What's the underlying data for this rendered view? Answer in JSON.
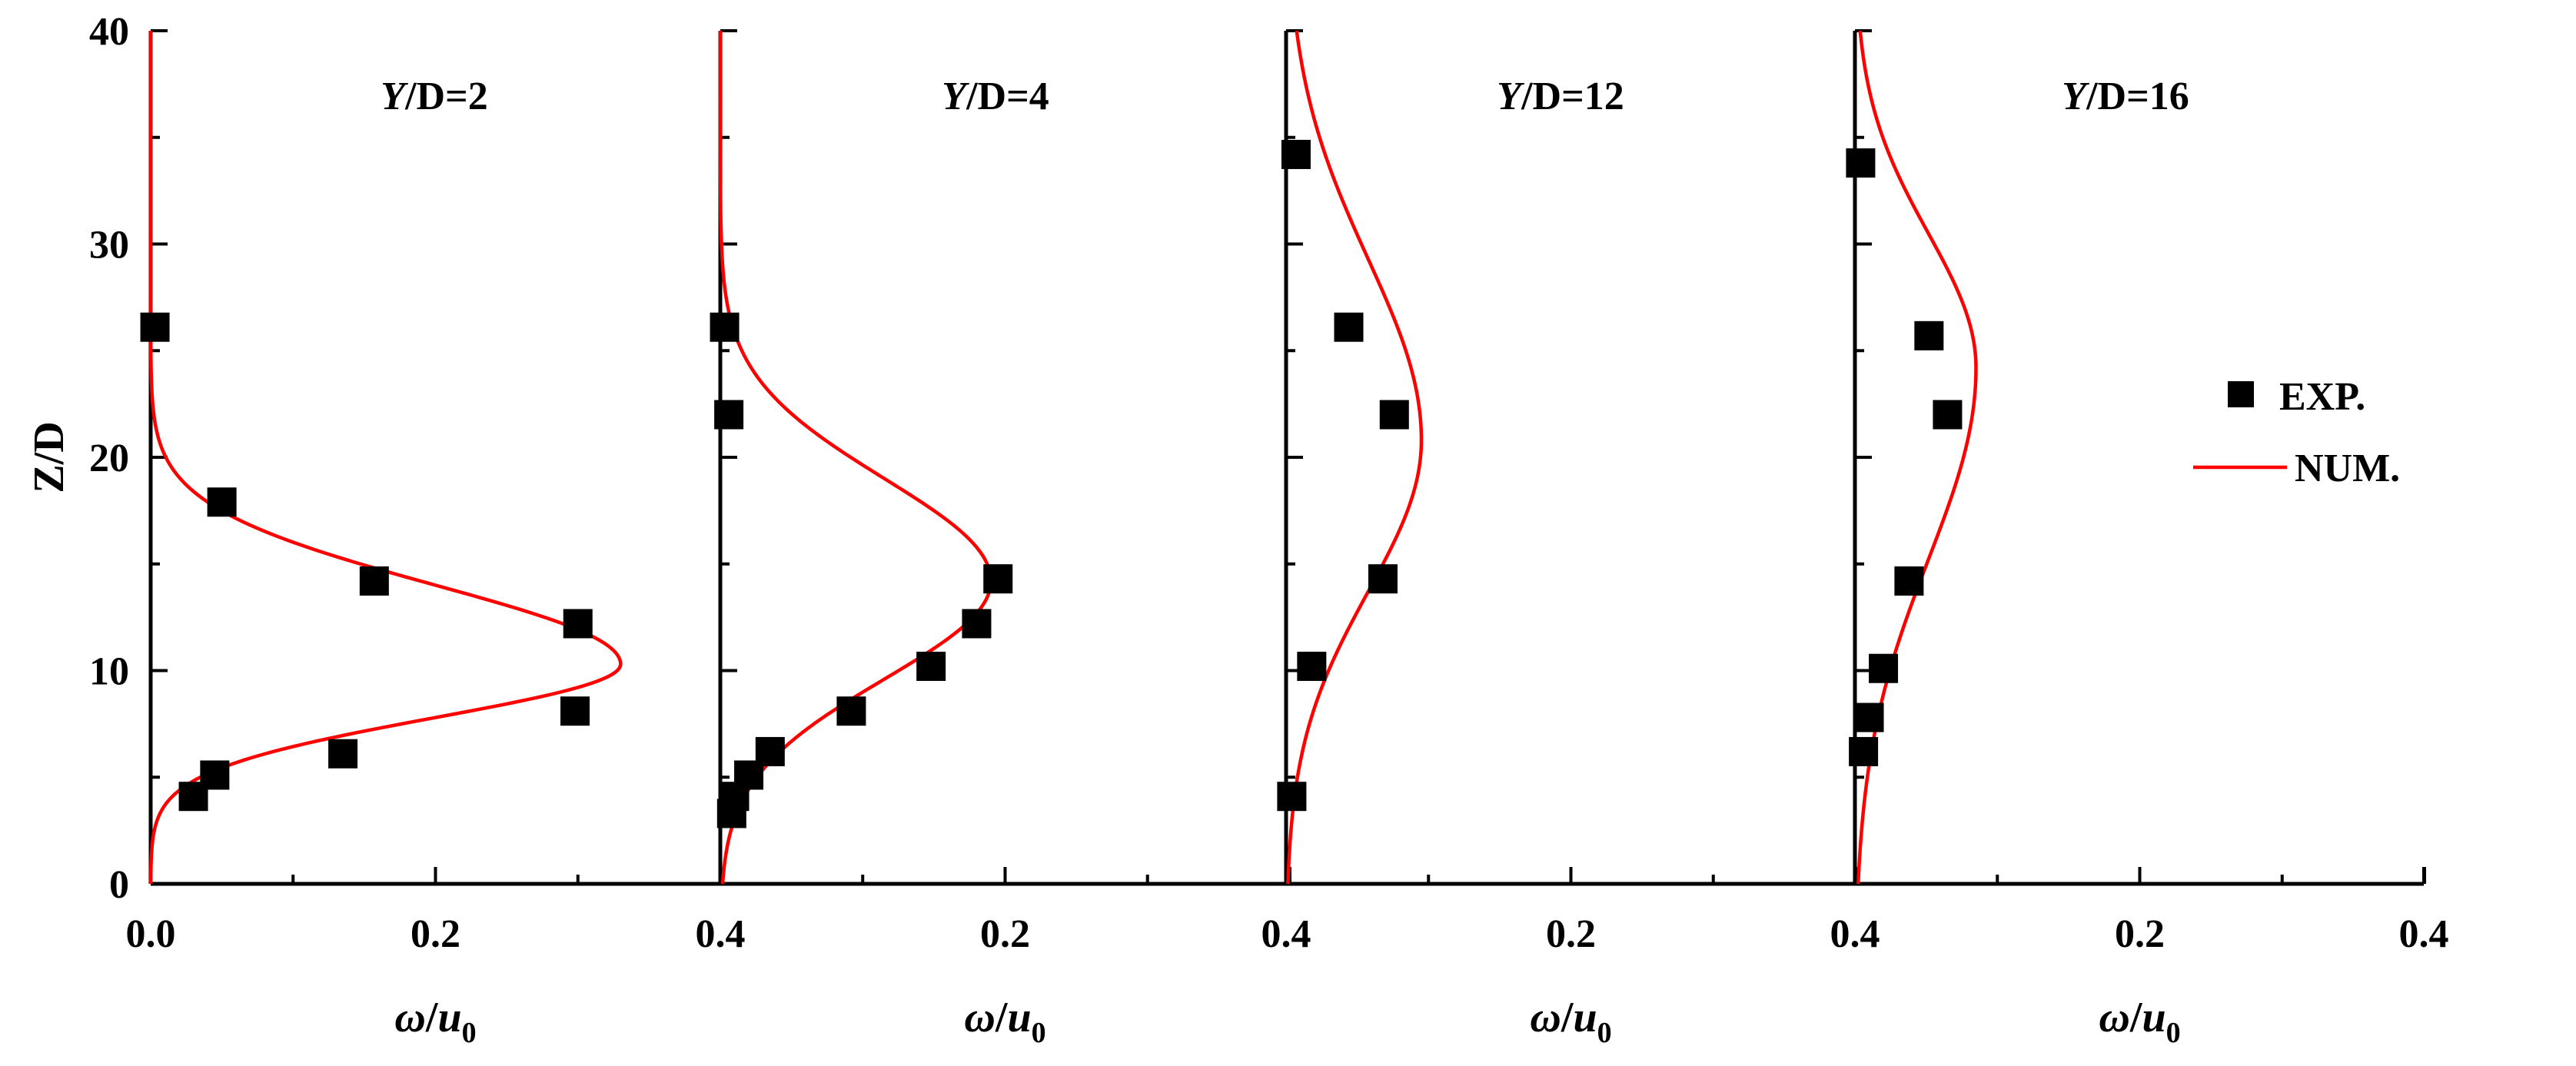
{
  "chart_data": {
    "type": "scatter",
    "ylabel": "Z/D",
    "ylim": [
      0,
      40
    ],
    "y_ticks": [
      "0",
      "10",
      "20",
      "30",
      "40"
    ],
    "x_ticks": [
      "0.0",
      "0.2",
      "0.4",
      "0.2",
      "0.4",
      "0.2",
      "0.4",
      "0.2",
      "0.4"
    ],
    "xlabel_parts": [
      "ω",
      "/",
      "u",
      "0"
    ],
    "xlim_per_panel": [
      0,
      0.4
    ],
    "legend": {
      "position": "right",
      "exp_label": "EXP.",
      "num_label": "NUM."
    },
    "panels": [
      {
        "title_italic": "Y",
        "title_rest": "/D=2",
        "exp": {
          "name": "EXP.",
          "x": [
            0.003,
            0.05,
            0.157,
            0.3,
            0.298,
            0.135,
            0.045,
            0.03
          ],
          "y": [
            26.1,
            17.9,
            14.2,
            12.2,
            8.1,
            6.1,
            5.1,
            4.1
          ]
        },
        "num": {
          "name": "NUM.",
          "center": 10.3,
          "peak": 0.33,
          "sigma_low": 2.5,
          "sigma_high": 3.7,
          "exponent": 2
        }
      },
      {
        "title_italic": "Y",
        "title_rest": "/D=4",
        "exp": {
          "x": [
            0.003,
            0.006,
            0.195,
            0.18,
            0.148,
            0.092,
            0.035,
            0.02,
            0.01,
            0.008
          ],
          "y": [
            26.1,
            22.0,
            14.3,
            12.2,
            10.2,
            8.1,
            6.2,
            5.1,
            4.1,
            3.3
          ]
        },
        "num": {
          "center": 14.2,
          "peak": 0.19,
          "sigma_low": 4.6,
          "sigma_high": 4.8,
          "exponent": 2
        }
      },
      {
        "title_italic": "Y",
        "title_rest": "/D=12",
        "exp": {
          "x": [
            0.007,
            0.044,
            0.076,
            0.068,
            0.018,
            0.004
          ],
          "y": [
            34.2,
            26.1,
            22.0,
            14.3,
            10.2,
            4.1
          ]
        },
        "num": {
          "center": 20.8,
          "peak": 0.095,
          "sigma_low": 7.1,
          "sigma_high": 8.5,
          "exponent": 2
        }
      },
      {
        "title_italic": "Y",
        "title_rest": "/D=16",
        "exp": {
          "x": [
            0.004,
            0.052,
            0.065,
            0.038,
            0.02,
            0.01,
            0.006
          ],
          "y": [
            33.8,
            25.7,
            22.0,
            14.2,
            10.1,
            7.8,
            6.2
          ]
        },
        "num": {
          "center": 24.2,
          "peak": 0.085,
          "sigma_low": 9.0,
          "sigma_high": 6.3,
          "exponent": 2
        }
      }
    ]
  }
}
